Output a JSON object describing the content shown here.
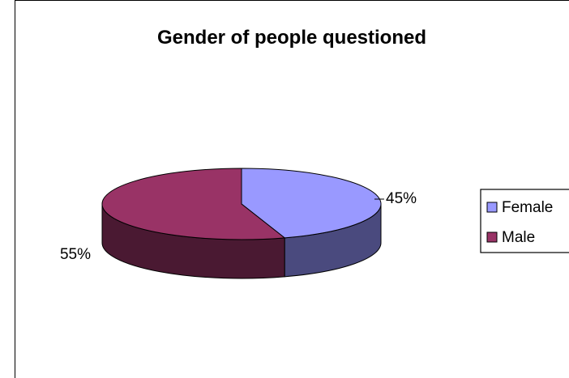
{
  "chart_data": {
    "type": "pie",
    "title": "Gender of people questioned",
    "slices": [
      {
        "name": "Female",
        "value": 45,
        "label": "45%",
        "color": "#9999ff",
        "side_color": "#4a4a7e"
      },
      {
        "name": "Male",
        "value": 55,
        "label": "55%",
        "color": "#993366",
        "side_color": "#4a1932"
      }
    ],
    "legend_position": "right",
    "three_d": true
  }
}
